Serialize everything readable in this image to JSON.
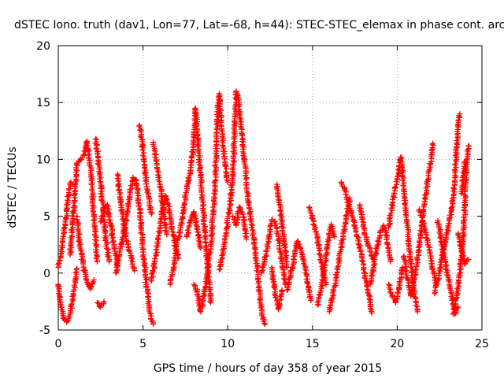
{
  "chart_data": {
    "type": "scatter",
    "title": "dSTEC Iono. truth (dav1, Lon=77, Lat=-68, h=44): STEC-STEC_elemax in phase cont. arc",
    "xlabel": "GPS time / hours of day 358 of year 2015",
    "ylabel": "dSTEC  / TECUs",
    "xlim": [
      0,
      25
    ],
    "ylim": [
      -5,
      20
    ],
    "x_ticks": [
      "0",
      "5",
      "10",
      "15",
      "20",
      "25"
    ],
    "y_ticks": [
      "-5",
      "0",
      "5",
      "10",
      "15",
      "20"
    ],
    "grid": true,
    "marker": "+",
    "marker_color": "#ff0000",
    "series": [
      {
        "name": "",
        "segments": [
          [
            [
              0.0,
              0.5
            ],
            [
              0.15,
              1.5
            ],
            [
              0.3,
              3.2
            ],
            [
              0.45,
              4.8
            ],
            [
              0.6,
              6.8
            ],
            [
              0.75,
              8.0
            ]
          ],
          [
            [
              0.0,
              -1.0
            ],
            [
              0.15,
              -2.6
            ],
            [
              0.3,
              -4.0
            ],
            [
              0.5,
              -4.3
            ],
            [
              0.7,
              -3.6
            ],
            [
              0.9,
              -1.9
            ],
            [
              1.1,
              0.4
            ]
          ],
          [
            [
              0.7,
              1.6
            ],
            [
              0.85,
              4.5
            ],
            [
              1.0,
              7.0
            ],
            [
              1.1,
              9.6
            ],
            [
              1.3,
              9.9
            ],
            [
              1.5,
              10.4
            ],
            [
              1.7,
              11.6
            ],
            [
              1.9,
              9.4
            ],
            [
              2.1,
              5.1
            ],
            [
              2.3,
              1.0
            ]
          ],
          [
            [
              1.1,
              5.0
            ],
            [
              1.3,
              2.2
            ],
            [
              1.5,
              0.5
            ],
            [
              1.7,
              -0.8
            ],
            [
              1.9,
              -1.4
            ],
            [
              2.1,
              -0.6
            ]
          ],
          [
            [
              2.2,
              11.8
            ],
            [
              2.35,
              10.2
            ],
            [
              2.5,
              8.0
            ],
            [
              2.65,
              5.5
            ],
            [
              2.8,
              3.0
            ],
            [
              3.0,
              1.0
            ]
          ],
          [
            [
              2.5,
              4.5
            ],
            [
              2.7,
              5.6
            ],
            [
              2.9,
              6.0
            ],
            [
              3.1,
              4.2
            ],
            [
              3.3,
              2.2
            ],
            [
              3.5,
              0.6
            ]
          ],
          [
            [
              2.3,
              -2.6
            ],
            [
              2.5,
              -3.0
            ],
            [
              2.7,
              -2.5
            ]
          ],
          [
            [
              3.4,
              0.0
            ],
            [
              3.6,
              1.5
            ],
            [
              3.8,
              3.0
            ],
            [
              4.0,
              4.6
            ],
            [
              4.2,
              6.6
            ],
            [
              4.4,
              8.4
            ],
            [
              4.6,
              8.2
            ],
            [
              4.8,
              5.6
            ],
            [
              5.0,
              2.1
            ],
            [
              5.2,
              -1.0
            ],
            [
              5.4,
              -3.5
            ],
            [
              5.6,
              -4.5
            ]
          ],
          [
            [
              3.5,
              8.7
            ],
            [
              3.7,
              6.0
            ],
            [
              3.9,
              4.0
            ],
            [
              4.1,
              2.5
            ],
            [
              4.3,
              1.4
            ],
            [
              4.5,
              0.2
            ]
          ],
          [
            [
              4.8,
              13.0
            ],
            [
              4.95,
              11.6
            ],
            [
              5.1,
              9.3
            ],
            [
              5.3,
              6.9
            ],
            [
              5.5,
              5.2
            ]
          ],
          [
            [
              5.5,
              -0.7
            ],
            [
              5.7,
              1.0
            ],
            [
              5.9,
              3.0
            ],
            [
              6.1,
              5.2
            ],
            [
              6.3,
              6.8
            ],
            [
              6.5,
              6.0
            ],
            [
              6.7,
              4.1
            ],
            [
              6.9,
              2.4
            ],
            [
              7.1,
              1.3
            ]
          ],
          [
            [
              5.6,
              11.5
            ],
            [
              5.8,
              9.8
            ],
            [
              6.0,
              7.8
            ],
            [
              6.2,
              5.6
            ],
            [
              6.4,
              3.4
            ]
          ],
          [
            [
              6.6,
              -1.0
            ],
            [
              6.8,
              0.5
            ],
            [
              7.0,
              2.5
            ],
            [
              7.2,
              3.8
            ],
            [
              7.4,
              5.6
            ],
            [
              7.6,
              7.6
            ],
            [
              7.8,
              9.0
            ],
            [
              8.0,
              11.5
            ],
            [
              8.1,
              14.5
            ],
            [
              8.2,
              12.6
            ],
            [
              8.4,
              8.6
            ],
            [
              8.6,
              4.6
            ],
            [
              8.8,
              0.8
            ],
            [
              9.0,
              -2.6
            ]
          ],
          [
            [
              7.6,
              3.2
            ],
            [
              7.8,
              4.6
            ],
            [
              8.0,
              5.4
            ],
            [
              8.2,
              4.0
            ],
            [
              8.4,
              2.2
            ]
          ],
          [
            [
              8.0,
              -1.0
            ],
            [
              8.2,
              -1.6
            ],
            [
              8.4,
              -3.4
            ],
            [
              8.6,
              -2.0
            ],
            [
              8.8,
              0.0
            ],
            [
              9.0,
              2.5
            ],
            [
              9.2,
              6.3
            ],
            [
              9.3,
              9.8
            ],
            [
              9.4,
              13.8
            ],
            [
              9.5,
              15.8
            ],
            [
              9.6,
              13.4
            ],
            [
              9.8,
              10.2
            ],
            [
              10.0,
              8.0
            ]
          ],
          [
            [
              9.5,
              0.3
            ],
            [
              9.7,
              1.6
            ],
            [
              9.9,
              3.5
            ],
            [
              10.1,
              5.6
            ],
            [
              10.3,
              8.6
            ],
            [
              10.4,
              12.6
            ],
            [
              10.5,
              16.0
            ],
            [
              10.6,
              15.6
            ],
            [
              10.8,
              12.8
            ],
            [
              11.0,
              9.6
            ],
            [
              11.2,
              6.8
            ],
            [
              11.4,
              4.5
            ],
            [
              11.6,
              2.2
            ],
            [
              11.8,
              -0.5
            ],
            [
              12.0,
              -3.5
            ],
            [
              12.2,
              -4.5
            ]
          ],
          [
            [
              10.3,
              5.0
            ],
            [
              10.5,
              4.2
            ],
            [
              10.7,
              5.8
            ],
            [
              10.9,
              5.2
            ],
            [
              11.1,
              3.0
            ]
          ],
          [
            [
              12.0,
              0.0
            ],
            [
              12.2,
              1.2
            ],
            [
              12.4,
              2.8
            ],
            [
              12.6,
              4.7
            ],
            [
              12.8,
              4.5
            ],
            [
              13.0,
              3.0
            ],
            [
              13.2,
              1.0
            ],
            [
              13.4,
              -1.0
            ]
          ],
          [
            [
              12.6,
              0.5
            ],
            [
              12.8,
              -1.8
            ],
            [
              13.0,
              -3.2
            ],
            [
              13.2,
              -1.5
            ]
          ],
          [
            [
              12.9,
              7.8
            ],
            [
              13.05,
              6.2
            ],
            [
              13.2,
              4.5
            ],
            [
              13.35,
              2.6
            ],
            [
              13.5,
              0.5
            ]
          ],
          [
            [
              13.5,
              -1.5
            ],
            [
              13.7,
              -0.2
            ],
            [
              13.9,
              1.2
            ],
            [
              14.1,
              2.8
            ],
            [
              14.3,
              2.2
            ],
            [
              14.5,
              1.0
            ],
            [
              14.7,
              -0.8
            ],
            [
              14.9,
              -2.4
            ]
          ],
          [
            [
              14.8,
              5.8
            ],
            [
              15.0,
              4.8
            ],
            [
              15.2,
              3.6
            ],
            [
              15.4,
              2.0
            ],
            [
              15.6,
              0.4
            ],
            [
              15.8,
              -1.0
            ]
          ],
          [
            [
              15.3,
              -2.8
            ],
            [
              15.5,
              -1.5
            ],
            [
              15.7,
              0.5
            ],
            [
              15.9,
              2.4
            ],
            [
              16.1,
              4.3
            ],
            [
              16.3,
              3.2
            ]
          ],
          [
            [
              16.0,
              -3.4
            ],
            [
              16.2,
              -2.0
            ],
            [
              16.4,
              -0.4
            ],
            [
              16.6,
              1.4
            ],
            [
              16.8,
              3.2
            ],
            [
              17.0,
              5.0
            ],
            [
              17.2,
              6.6
            ]
          ],
          [
            [
              16.7,
              8.0
            ],
            [
              16.9,
              7.4
            ],
            [
              17.1,
              6.2
            ],
            [
              17.3,
              5.4
            ],
            [
              17.5,
              4.2
            ],
            [
              17.7,
              3.0
            ],
            [
              17.9,
              1.5
            ],
            [
              18.1,
              -0.2
            ],
            [
              18.3,
              -1.8
            ],
            [
              18.5,
              -3.5
            ]
          ],
          [
            [
              17.8,
              6.0
            ],
            [
              18.0,
              4.2
            ],
            [
              18.2,
              2.8
            ],
            [
              18.4,
              2.0
            ],
            [
              18.6,
              1.2
            ]
          ],
          [
            [
              18.4,
              -1.0
            ],
            [
              18.6,
              0.5
            ],
            [
              18.8,
              2.2
            ],
            [
              19.0,
              3.6
            ],
            [
              19.2,
              4.2
            ],
            [
              19.4,
              3.0
            ],
            [
              19.6,
              1.0
            ]
          ],
          [
            [
              19.5,
              4.0
            ],
            [
              19.7,
              6.0
            ],
            [
              19.9,
              7.5
            ],
            [
              20.0,
              8.2
            ],
            [
              20.2,
              10.2
            ],
            [
              20.3,
              9.2
            ],
            [
              20.4,
              7.0
            ],
            [
              20.6,
              4.0
            ],
            [
              20.8,
              1.2
            ],
            [
              21.0,
              -1.8
            ],
            [
              21.2,
              -3.4
            ]
          ],
          [
            [
              19.5,
              -1.0
            ],
            [
              19.7,
              -2.0
            ],
            [
              19.9,
              -2.6
            ],
            [
              20.1,
              -1.4
            ],
            [
              20.3,
              0.5
            ]
          ],
          [
            [
              20.4,
              1.5
            ],
            [
              20.6,
              -0.5
            ],
            [
              20.8,
              -2.0
            ],
            [
              21.0,
              -0.6
            ],
            [
              21.2,
              1.2
            ],
            [
              21.4,
              3.6
            ],
            [
              21.6,
              6.0
            ],
            [
              21.8,
              8.2
            ],
            [
              22.0,
              9.8
            ],
            [
              22.1,
              11.4
            ]
          ],
          [
            [
              21.3,
              5.6
            ],
            [
              21.5,
              4.6
            ],
            [
              21.7,
              3.4
            ],
            [
              21.9,
              2.0
            ],
            [
              22.1,
              0.4
            ],
            [
              22.3,
              -1.0
            ]
          ],
          [
            [
              22.2,
              -1.8
            ],
            [
              22.4,
              -0.6
            ],
            [
              22.6,
              1.0
            ],
            [
              22.8,
              2.5
            ],
            [
              23.0,
              4.0
            ],
            [
              23.2,
              5.5
            ],
            [
              23.4,
              8.0
            ],
            [
              23.5,
              11.0
            ],
            [
              23.6,
              13.4
            ],
            [
              23.7,
              14.0
            ]
          ],
          [
            [
              22.4,
              4.6
            ],
            [
              22.6,
              2.8
            ],
            [
              22.8,
              1.2
            ],
            [
              23.0,
              -0.4
            ],
            [
              23.2,
              -1.8
            ],
            [
              23.4,
              -3.6
            ],
            [
              23.6,
              -3.0
            ]
          ],
          [
            [
              23.3,
              -3.6
            ],
            [
              23.5,
              -2.2
            ],
            [
              23.7,
              0.0
            ],
            [
              23.9,
              3.0
            ],
            [
              24.0,
              6.2
            ],
            [
              24.1,
              10.0
            ],
            [
              24.2,
              11.2
            ]
          ],
          [
            [
              23.8,
              7.0
            ],
            [
              23.9,
              8.6
            ],
            [
              24.0,
              9.8
            ]
          ],
          [
            [
              23.6,
              3.5
            ],
            [
              23.8,
              2.0
            ],
            [
              24.0,
              0.8
            ],
            [
              24.2,
              1.2
            ]
          ]
        ]
      }
    ]
  }
}
